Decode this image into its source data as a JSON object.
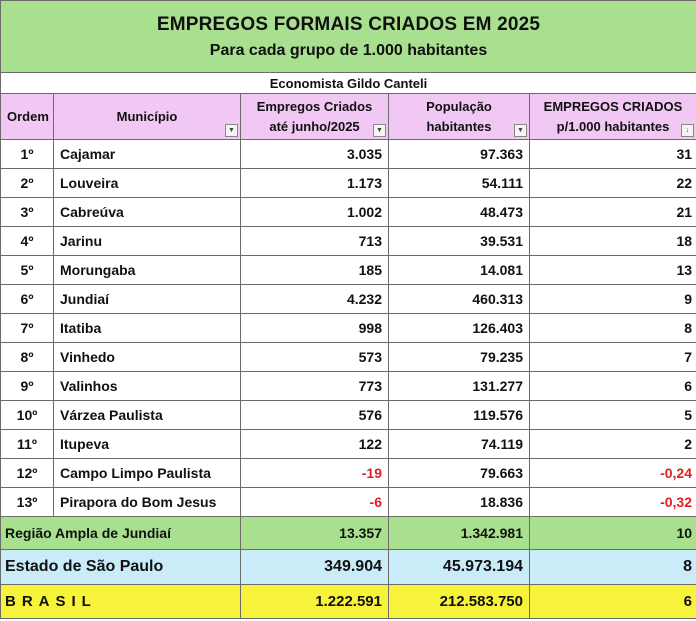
{
  "title": "EMPREGOS FORMAIS CRIADOS EM 2025",
  "subtitle": "Para cada grupo de 1.000 habitantes",
  "author": "Economista Gildo Canteli",
  "headers": {
    "ordem": "Ordem",
    "municipio": "Município",
    "empregos_l1": "Empregos Criados",
    "empregos_l2": "até junho/2025",
    "populacao_l1": "População",
    "populacao_l2": "habitantes",
    "per1000_l1": "EMPREGOS CRIADOS",
    "per1000_l2": "p/1.000 habitantes"
  },
  "rows": [
    {
      "ordem": "1º",
      "municipio": "Cajamar",
      "empregos": "3.035",
      "populacao": "97.363",
      "per1000": "31"
    },
    {
      "ordem": "2º",
      "municipio": "Louveira",
      "empregos": "1.173",
      "populacao": "54.111",
      "per1000": "22"
    },
    {
      "ordem": "3º",
      "municipio": "Cabreúva",
      "empregos": "1.002",
      "populacao": "48.473",
      "per1000": "21"
    },
    {
      "ordem": "4º",
      "municipio": "Jarinu",
      "empregos": "713",
      "populacao": "39.531",
      "per1000": "18"
    },
    {
      "ordem": "5º",
      "municipio": "Morungaba",
      "empregos": "185",
      "populacao": "14.081",
      "per1000": "13"
    },
    {
      "ordem": "6º",
      "municipio": "Jundiaí",
      "empregos": "4.232",
      "populacao": "460.313",
      "per1000": "9"
    },
    {
      "ordem": "7º",
      "municipio": "Itatiba",
      "empregos": "998",
      "populacao": "126.403",
      "per1000": "8"
    },
    {
      "ordem": "8º",
      "municipio": "Vinhedo",
      "empregos": "573",
      "populacao": "79.235",
      "per1000": "7"
    },
    {
      "ordem": "9º",
      "municipio": "Valinhos",
      "empregos": "773",
      "populacao": "131.277",
      "per1000": "6"
    },
    {
      "ordem": "10º",
      "municipio": "Várzea Paulista",
      "empregos": "576",
      "populacao": "119.576",
      "per1000": "5"
    },
    {
      "ordem": "11º",
      "municipio": "Itupeva",
      "empregos": "122",
      "populacao": "74.119",
      "per1000": "2"
    },
    {
      "ordem": "12º",
      "municipio": "Campo Limpo Paulista",
      "empregos": "-19",
      "populacao": "79.663",
      "per1000": "-0,24"
    },
    {
      "ordem": "13º",
      "municipio": "Pirapora do Bom Jesus",
      "empregos": "-6",
      "populacao": "18.836",
      "per1000": "-0,32"
    }
  ],
  "summary": {
    "regiao": {
      "label": "Região Ampla de Jundiaí",
      "empregos": "13.357",
      "populacao": "1.342.981",
      "per1000": "10"
    },
    "estado": {
      "label": "Estado de São Paulo",
      "empregos": "349.904",
      "populacao": "45.973.194",
      "per1000": "8"
    },
    "brasil": {
      "label": "BRASIL",
      "empregos": "1.222.591",
      "populacao": "212.583.750",
      "per1000": "6"
    }
  },
  "colors": {
    "title_bg": "#a8e08f",
    "header_bg": "#f0c8f3",
    "estado_bg": "#c9ecf8",
    "brasil_bg": "#f7f23a",
    "negative": "#e02020"
  },
  "icons": {
    "filter": "dropdown-filter-icon"
  }
}
